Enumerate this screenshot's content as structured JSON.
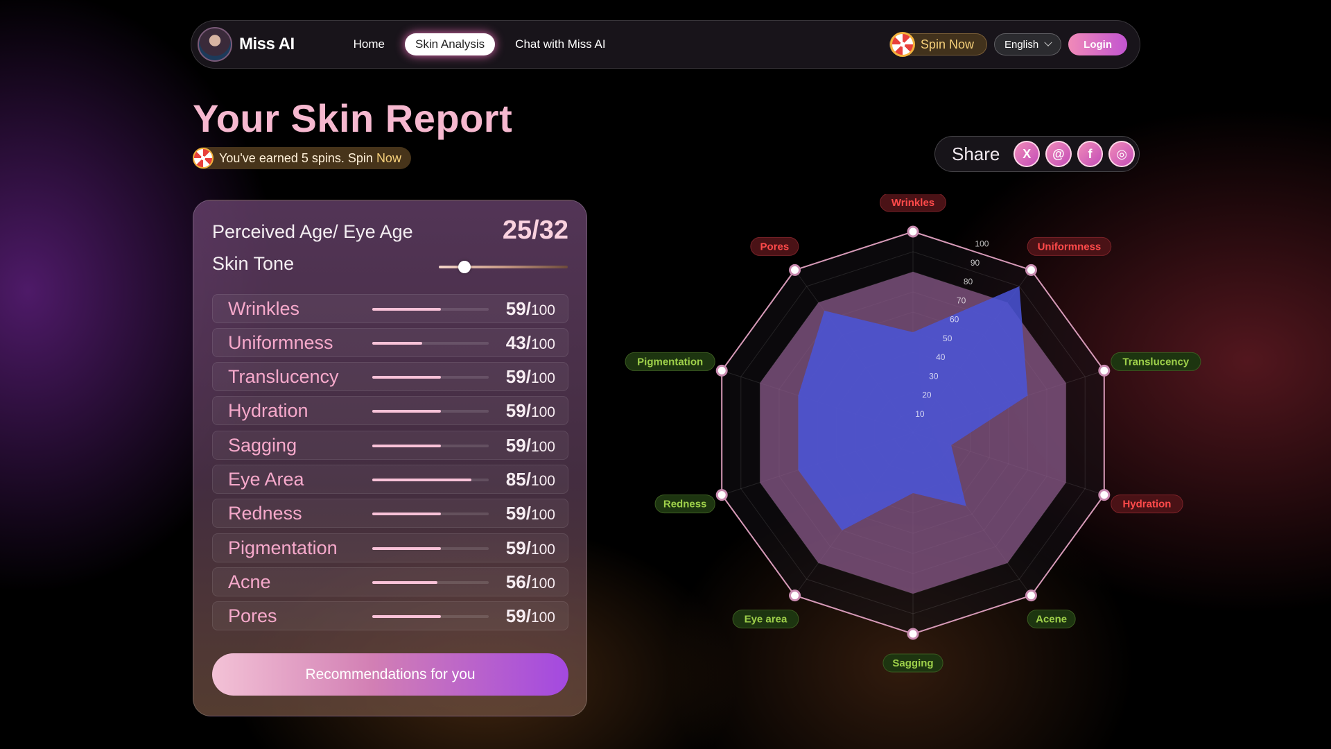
{
  "nav": {
    "brand": "Miss AI",
    "links": [
      {
        "label": "Home",
        "active": false
      },
      {
        "label": "Skin Analysis",
        "active": true
      },
      {
        "label": "Chat with Miss AI",
        "active": false
      }
    ],
    "spin_label": "Spin Now",
    "language": "English",
    "login_label": "Login"
  },
  "header": {
    "title": "Your Skin Report",
    "earned_text": "You've earned 5 spins. Spin ",
    "earned_link": "Now"
  },
  "share": {
    "label": "Share",
    "icons": [
      "x-icon",
      "threads-icon",
      "facebook-icon",
      "instagram-icon"
    ],
    "glyphs": [
      "X",
      "@",
      "f",
      "◎"
    ]
  },
  "report": {
    "age_label": "Perceived Age/ Eye Age",
    "age_value": "25/32",
    "tone_label": "Skin Tone",
    "tone_level": 0.2,
    "metrics": [
      {
        "name": "Wrinkles",
        "score": "59/",
        "max": "100",
        "value": 59
      },
      {
        "name": "Uniformness",
        "score": "43/",
        "max": "100",
        "value": 43
      },
      {
        "name": "Translucency",
        "score": "59/",
        "max": "100",
        "value": 59
      },
      {
        "name": "Hydration",
        "score": "59/",
        "max": "100",
        "value": 59
      },
      {
        "name": "Sagging",
        "score": "59/",
        "max": "100",
        "value": 59
      },
      {
        "name": "Eye Area",
        "score": "85/",
        "max": "100",
        "value": 85
      },
      {
        "name": "Redness",
        "score": "59/",
        "max": "100",
        "value": 59
      },
      {
        "name": "Pigmentation",
        "score": "59/",
        "max": "100",
        "value": 59
      },
      {
        "name": "Acne",
        "score": "56/",
        "max": "100",
        "value": 56
      },
      {
        "name": "Pores",
        "score": "59/",
        "max": "100",
        "value": 59
      }
    ],
    "recommendations_label": "Recommendations for you"
  },
  "chart_data": {
    "type": "radar",
    "axes": [
      "Wrinkles",
      "Uniformness",
      "Translucency",
      "Hydration",
      "Acene",
      "Sagging",
      "Eye area",
      "Redness",
      "Pigmentation",
      "Pores"
    ],
    "axis_status": [
      "bad",
      "bad",
      "good",
      "bad",
      "good",
      "good",
      "good",
      "good",
      "good",
      "bad"
    ],
    "ticks": [
      "10",
      "20",
      "30",
      "40",
      "50",
      "60",
      "70",
      "80",
      "90",
      "100"
    ],
    "rmax": 100,
    "series": [
      {
        "values": [
          50,
          90,
          60,
          20,
          45,
          30,
          60,
          60,
          60,
          75
        ],
        "color": "#4a55d8"
      },
      {
        "values": [
          80,
          80,
          80,
          80,
          80,
          80,
          80,
          80,
          80,
          80
        ],
        "color": "#8a5a8a"
      }
    ],
    "colors": {
      "bad_text": "#ff4a4a",
      "bad_bg": "#4a1216",
      "good_text": "#9ed04a",
      "good_bg": "#1d3510"
    }
  }
}
